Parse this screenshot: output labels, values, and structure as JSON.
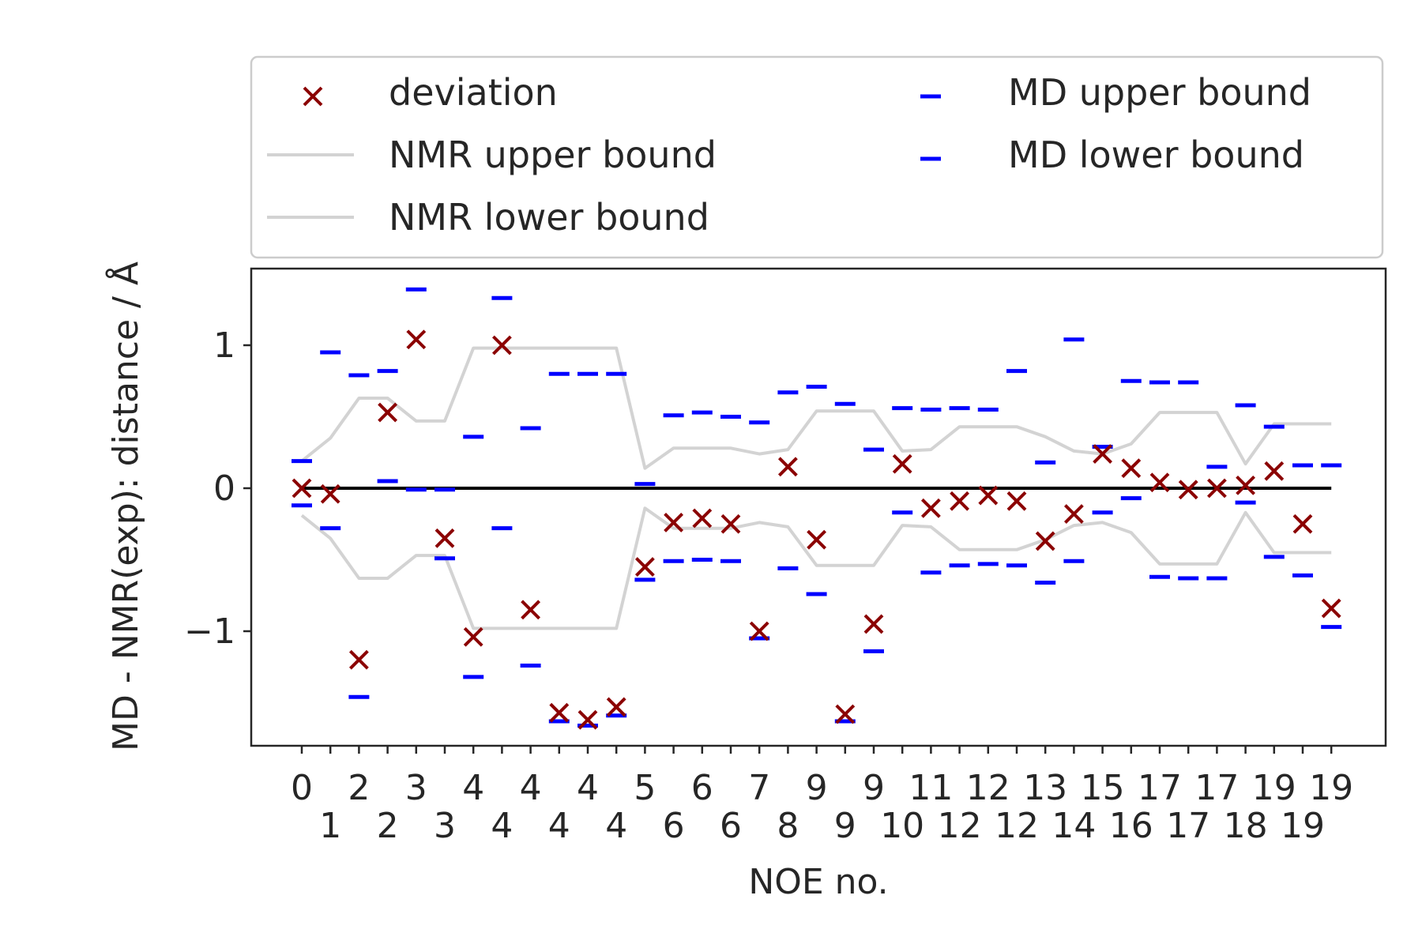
{
  "chart_data": {
    "type": "scatter",
    "title": "",
    "xlabel": "NOE no.",
    "ylabel": "MD - NMR(exp): distance / Å",
    "ylim": [
      -1.82,
      1.55
    ],
    "yticks": [
      {
        "value": 1,
        "label": "1"
      },
      {
        "value": 0,
        "label": "0"
      },
      {
        "value": -1,
        "label": "−1"
      }
    ],
    "xtick_labels": [
      [
        "0",
        ""
      ],
      [
        "",
        "1"
      ],
      [
        "2",
        ""
      ],
      [
        "",
        "2"
      ],
      [
        "3",
        ""
      ],
      [
        "",
        "3"
      ],
      [
        "4",
        ""
      ],
      [
        "",
        "4"
      ],
      [
        "4",
        ""
      ],
      [
        "",
        "4"
      ],
      [
        "4",
        ""
      ],
      [
        "",
        "4"
      ],
      [
        "5",
        ""
      ],
      [
        "",
        "6"
      ],
      [
        "6",
        ""
      ],
      [
        "",
        "6"
      ],
      [
        "7",
        ""
      ],
      [
        "",
        "8"
      ],
      [
        "9",
        ""
      ],
      [
        "",
        "9"
      ],
      [
        "9",
        ""
      ],
      [
        "",
        "10"
      ],
      [
        "11",
        ""
      ],
      [
        "",
        "12"
      ],
      [
        "12",
        ""
      ],
      [
        "",
        "12"
      ],
      [
        "13",
        ""
      ],
      [
        "",
        "14"
      ],
      [
        "15",
        ""
      ],
      [
        "",
        "16"
      ],
      [
        "17",
        ""
      ],
      [
        "",
        "17"
      ],
      [
        "17",
        ""
      ],
      [
        "",
        "18"
      ],
      [
        "19",
        ""
      ],
      [
        "",
        "19"
      ],
      [
        "19",
        ""
      ]
    ],
    "zero_line": true,
    "legend_position": "above",
    "legend": [
      {
        "label": "deviation",
        "marker": "x",
        "color": "#8b0000"
      },
      {
        "label": "NMR upper bound",
        "marker": "line",
        "color": "#d3d3d3"
      },
      {
        "label": "NMR lower bound",
        "marker": "line",
        "color": "#d3d3d3"
      },
      {
        "label": "MD upper bound",
        "marker": "dash",
        "color": "#0000ff"
      },
      {
        "label": "MD lower bound",
        "marker": "dash",
        "color": "#0000ff"
      }
    ],
    "series": [
      {
        "name": "deviation",
        "color": "#8b0000",
        "values": [
          0.0,
          -0.04,
          -1.2,
          0.53,
          1.04,
          -0.35,
          -1.04,
          1.0,
          -0.85,
          -1.57,
          -1.62,
          -1.53,
          -0.55,
          -0.24,
          -0.21,
          -0.25,
          -1.0,
          0.15,
          -0.36,
          -1.58,
          -0.95,
          0.17,
          -0.14,
          -0.09,
          -0.05,
          -0.09,
          -0.37,
          -0.18,
          0.24,
          0.14,
          0.04,
          -0.01,
          0.0,
          0.02,
          0.12,
          -0.25,
          -0.84
        ]
      },
      {
        "name": "MD upper bound",
        "color": "#0000ff",
        "values": [
          0.19,
          0.95,
          0.79,
          0.82,
          1.39,
          -0.01,
          0.36,
          1.33,
          0.42,
          0.8,
          0.8,
          0.8,
          0.03,
          0.51,
          0.53,
          0.5,
          0.46,
          0.67,
          0.71,
          0.59,
          0.27,
          0.56,
          0.55,
          0.56,
          0.55,
          0.82,
          0.18,
          1.04,
          0.29,
          0.75,
          0.74,
          0.74,
          0.15,
          0.58,
          0.43,
          0.16,
          0.16
        ]
      },
      {
        "name": "MD lower bound",
        "color": "#0000ff",
        "values": [
          -0.12,
          -0.28,
          -1.46,
          0.05,
          -0.01,
          -0.49,
          -1.32,
          -0.28,
          -1.24,
          -1.63,
          -1.66,
          -1.59,
          -0.64,
          -0.51,
          -0.5,
          -0.51,
          -1.05,
          -0.56,
          -0.74,
          -1.63,
          -1.14,
          -0.17,
          -0.59,
          -0.54,
          -0.53,
          -0.54,
          -0.66,
          -0.51,
          -0.17,
          -0.07,
          -0.62,
          -0.63,
          -0.63,
          -0.1,
          -0.48,
          -0.61,
          -0.97
        ]
      },
      {
        "name": "NMR upper bound",
        "color": "#d3d3d3",
        "values": [
          0.19,
          0.35,
          0.63,
          0.63,
          0.47,
          0.47,
          0.98,
          0.98,
          0.98,
          0.98,
          0.98,
          0.98,
          0.14,
          0.28,
          0.28,
          0.28,
          0.24,
          0.27,
          0.54,
          0.54,
          0.54,
          0.26,
          0.27,
          0.43,
          0.43,
          0.43,
          0.36,
          0.26,
          0.24,
          0.31,
          0.53,
          0.53,
          0.53,
          0.17,
          0.45,
          0.45,
          0.45
        ]
      },
      {
        "name": "NMR lower bound",
        "color": "#d3d3d3",
        "values": [
          -0.19,
          -0.35,
          -0.63,
          -0.63,
          -0.47,
          -0.47,
          -0.98,
          -0.98,
          -0.98,
          -0.98,
          -0.98,
          -0.98,
          -0.14,
          -0.28,
          -0.28,
          -0.28,
          -0.24,
          -0.27,
          -0.54,
          -0.54,
          -0.54,
          -0.26,
          -0.27,
          -0.43,
          -0.43,
          -0.43,
          -0.36,
          -0.26,
          -0.24,
          -0.31,
          -0.53,
          -0.53,
          -0.53,
          -0.17,
          -0.45,
          -0.45,
          -0.45
        ]
      }
    ]
  }
}
